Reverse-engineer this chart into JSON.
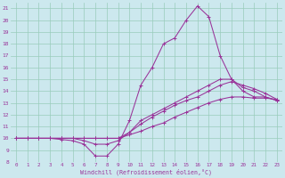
{
  "bg_color": "#cce8ee",
  "line_color": "#993399",
  "grid_color": "#99ccbb",
  "xlabel": "Windchill (Refroidissement éolien,°C)",
  "xlim": [
    -0.5,
    23.5
  ],
  "ylim": [
    8,
    21.5
  ],
  "xticks": [
    0,
    1,
    2,
    3,
    4,
    5,
    6,
    7,
    8,
    9,
    10,
    11,
    12,
    13,
    14,
    15,
    16,
    17,
    18,
    19,
    20,
    21,
    22,
    23
  ],
  "yticks": [
    8,
    9,
    10,
    11,
    12,
    13,
    14,
    15,
    16,
    17,
    18,
    19,
    20,
    21
  ],
  "curve1_x": [
    0,
    1,
    2,
    3,
    4,
    5,
    6,
    7,
    8,
    9,
    10,
    11,
    12,
    13,
    14,
    15,
    16,
    17,
    18,
    19,
    20,
    21,
    22,
    23
  ],
  "curve1_y": [
    10,
    10,
    10,
    10,
    10,
    10,
    10,
    10,
    10,
    10,
    10.3,
    10.6,
    11.0,
    11.3,
    11.8,
    12.2,
    12.6,
    13.0,
    13.3,
    13.5,
    13.5,
    13.4,
    13.4,
    13.3
  ],
  "curve2_x": [
    0,
    1,
    2,
    3,
    4,
    5,
    6,
    7,
    8,
    9,
    10,
    11,
    12,
    13,
    14,
    15,
    16,
    17,
    18,
    19,
    20,
    21,
    22,
    23
  ],
  "curve2_y": [
    10,
    10,
    10,
    10,
    9.9,
    9.8,
    9.5,
    8.5,
    8.5,
    9.5,
    11.5,
    14.5,
    16.0,
    18.0,
    18.5,
    20.0,
    21.2,
    20.3,
    17.0,
    15.0,
    14.0,
    13.5,
    13.5,
    13.2
  ],
  "curve3_x": [
    0,
    1,
    2,
    3,
    4,
    5,
    6,
    7,
    8,
    9,
    10,
    11,
    12,
    13,
    14,
    15,
    16,
    17,
    18,
    19,
    20,
    21,
    22,
    23
  ],
  "curve3_y": [
    10,
    10,
    10,
    10,
    10,
    10,
    10,
    10,
    10,
    10,
    10.5,
    11.2,
    11.8,
    12.3,
    12.8,
    13.2,
    13.5,
    14.0,
    14.5,
    14.8,
    14.5,
    14.2,
    13.8,
    13.3
  ],
  "curve4_x": [
    0,
    1,
    2,
    3,
    4,
    5,
    6,
    7,
    8,
    9,
    10,
    11,
    12,
    13,
    14,
    15,
    16,
    17,
    18,
    19,
    20,
    21,
    22,
    23
  ],
  "curve4_y": [
    10,
    10,
    10,
    10,
    10,
    10,
    9.8,
    9.5,
    9.5,
    9.8,
    10.5,
    11.5,
    12.0,
    12.5,
    13.0,
    13.5,
    14.0,
    14.5,
    15.0,
    15.0,
    14.3,
    14.0,
    13.5,
    13.2
  ]
}
